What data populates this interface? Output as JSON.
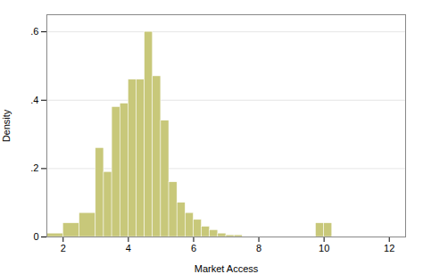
{
  "chart_data": {
    "type": "histogram",
    "xlabel": "Market Access",
    "ylabel": "Density",
    "color": "#c8c87a",
    "x": [
      1.5,
      2.0,
      2.5,
      3.0,
      3.25,
      3.5,
      3.75,
      4.0,
      4.25,
      4.5,
      4.75,
      5.0,
      5.25,
      5.5,
      5.75,
      6.0,
      6.25,
      6.5,
      6.75,
      7.0,
      7.25,
      9.75,
      10.0
    ],
    "widths": [
      0.5,
      0.5,
      0.5,
      0.25,
      0.25,
      0.25,
      0.25,
      0.25,
      0.25,
      0.25,
      0.25,
      0.25,
      0.25,
      0.25,
      0.25,
      0.25,
      0.25,
      0.25,
      0.25,
      0.25,
      0.25,
      0.25,
      0.25
    ],
    "values": [
      0.01,
      0.04,
      0.07,
      0.26,
      0.19,
      0.38,
      0.39,
      0.46,
      0.46,
      0.6,
      0.47,
      0.34,
      0.16,
      0.1,
      0.07,
      0.05,
      0.03,
      0.02,
      0.01,
      0.005,
      0.005,
      0.04,
      0.04
    ],
    "xlim": [
      1.5,
      12.5
    ],
    "xticks": [
      2,
      4,
      6,
      8,
      10,
      12
    ],
    "ylim": [
      0,
      0.65
    ],
    "yticks": [
      0,
      {
        "value": 0.2,
        "label": ".2"
      },
      {
        "value": 0.4,
        "label": ".4"
      },
      {
        "value": 0.6,
        "label": ".6"
      }
    ],
    "grid": true
  }
}
